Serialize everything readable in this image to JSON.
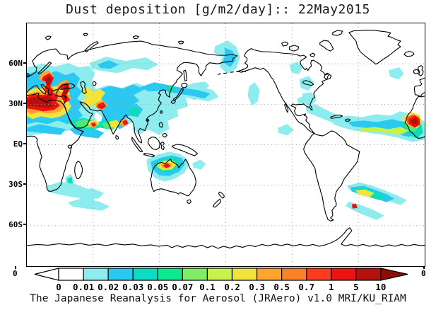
{
  "title": "Dust deposition [g/m2/day]:: 22May2015",
  "caption": "The Japanese Reanalysis for Aerosol (JRAero) v1.0 MRI/KU_RIAM",
  "axes": {
    "lat_labels": [
      {
        "label": "60N",
        "lat": 60
      },
      {
        "label": "30N",
        "lat": 30
      },
      {
        "label": "EQ",
        "lat": 0
      },
      {
        "label": "30S",
        "lat": -30
      },
      {
        "label": "60S",
        "lat": -60
      }
    ],
    "lon_corner_left": "0",
    "lon_corner_right": "0",
    "lon_gridlines": [
      60,
      120,
      180,
      240,
      300
    ],
    "lat_gridlines": [
      60,
      30,
      0,
      -30,
      -60
    ],
    "lon_range": [
      0,
      360
    ],
    "lat_range": [
      -90,
      90
    ]
  },
  "colorbar": {
    "levels": [
      "0",
      "0.01",
      "0.02",
      "0.03",
      "0.05",
      "0.07",
      "0.1",
      "0.2",
      "0.3",
      "0.5",
      "0.7",
      "1",
      "5",
      "10"
    ],
    "segment_colors": [
      "#ffffff",
      "#8deced",
      "#2bc8f2",
      "#0cdcc3",
      "#0ee890",
      "#7fee62",
      "#c8f24b",
      "#f2e43d",
      "#ffa52f",
      "#fb8128",
      "#fb3b1b",
      "#ee1210",
      "#b5100c"
    ],
    "arrow_left_color": "#ffffff",
    "arrow_right_color": "#8d0e09"
  },
  "chart_data": {
    "type": "heatmap",
    "title": "Dust deposition [g/m2/day]:: 22May2015",
    "variable": "Dust deposition",
    "units": "g/m2/day",
    "date": "22May2015",
    "source": "The Japanese Reanalysis for Aerosol (JRAero) v1.0 MRI/KU_RIAM",
    "projection": "equirectangular",
    "lon_range": [
      0,
      360
    ],
    "lat_range": [
      -90,
      90
    ],
    "contour_levels": [
      0,
      0.01,
      0.02,
      0.03,
      0.05,
      0.07,
      0.1,
      0.2,
      0.3,
      0.5,
      0.7,
      1,
      5,
      10
    ],
    "palette": [
      "#8deced",
      "#2bc8f2",
      "#0edcb4",
      "#4fe97a",
      "#c8f24b",
      "#f2e43d",
      "#ffa52f",
      "#fb5a1e",
      "#ee1210",
      "#b5100c"
    ],
    "hotspots": [
      {
        "region": "North Africa / Sahara (0-30E, 18-35N)",
        "approx_value_g_m2_day": ">10"
      },
      {
        "region": "Saharan plume over Italy / Balkans (10-25E, 35-47N)",
        "approx_value_g_m2_day": "1-10"
      },
      {
        "region": "Eastern Mediterranean / Turkey / Middle East",
        "approx_value_g_m2_day": "1-10"
      },
      {
        "region": "NW India / Pakistan (Thar desert)",
        "approx_value_g_m2_day": "1-5"
      },
      {
        "region": "West Africa coast near prime meridian (right map edge)",
        "approx_value_g_m2_day": ">10"
      },
      {
        "region": "Tropical North Atlantic dust plume (5-15N)",
        "approx_value_g_m2_day": "0.01-0.3"
      },
      {
        "region": "Northern Australia",
        "approx_value_g_m2_day": "0.1-1"
      },
      {
        "region": "Patagonia plumes into South Atlantic (38-50S)",
        "approx_value_g_m2_day": "0.02-1"
      },
      {
        "region": "East Asia to North Pacific transport band (30-50N)",
        "approx_value_g_m2_day": "0.01-0.05"
      },
      {
        "region": "Southern Indian Ocean streaks (35-45S)",
        "approx_value_g_m2_day": "0.01-0.03"
      },
      {
        "region": "Central North America scattered patches",
        "approx_value_g_m2_day": "0.01-0.05"
      }
    ],
    "field": [
      {
        "l": 0,
        "p": "0,62 22,57 40,61 58,56 74,62 88,60 96,70 91,84 98,94 93,107 99,119 95,132 101,141 90,150 72,147 56,152 40,149 20,156 0,158"
      },
      {
        "l": 0,
        "p": "88,56 112,47 140,53 168,48 186,58 170,66 150,63 128,70 106,67 92,64"
      },
      {
        "l": 0,
        "p": "94,94 114,87 134,91 154,84 175,91 192,87 206,94 220,90 236,84 252,82 258,88 248,96 252,101 238,108 224,104 228,117 212,122 214,131 199,137 201,149 186,157 171,149 159,157 149,149 153,139 139,143 127,137 116,141 106,132 97,124 103,114 95,104"
      },
      {
        "l": 0,
        "p": "266,32 284,24 296,33 301,48 296,64 283,71 272,61 276,47 264,41"
      },
      {
        "l": 0,
        "p": "224,96 244,89 263,94 271,104 256,110 237,106 225,102"
      },
      {
        "l": 0,
        "p": "314,89 322,83 329,94 326,110 318,116 312,102"
      },
      {
        "l": 0,
        "p": "355,147 368,142 377,150 368,158 355,154"
      },
      {
        "l": 0,
        "p": "371,59 382,54 390,62 384,72 374,69"
      },
      {
        "l": 0,
        "p": "385,79 398,74 406,84 398,95 387,91"
      },
      {
        "l": 0,
        "p": "389,99 402,97 409,108 400,118 391,111"
      },
      {
        "l": 0,
        "p": "394,117 408,114 421,121 436,128 452,133 466,138 480,144 470,150 454,147 438,142 422,136 407,130 395,125"
      },
      {
        "l": 0,
        "p": "430,136 452,130 474,132 494,128 514,130 527,124 542,127 556,134 562,139 562,164 544,167 524,161 504,157 482,154 462,151 446,147 433,142"
      },
      {
        "l": 0,
        "p": "511,66 526,62 533,71 525,79 513,75"
      },
      {
        "l": 0,
        "p": "169,192 184,185 201,181 216,184 226,191 229,200 222,211 209,219 195,223 181,218 171,207"
      },
      {
        "l": 0,
        "p": "234,197 245,192 253,198 246,206 235,203"
      },
      {
        "l": 0,
        "p": "26,230 48,223 70,227 88,234 102,241 93,250 72,246 50,242 32,238"
      },
      {
        "l": 0,
        "p": "58,252 80,246 102,251 117,258 106,264 84,261 64,258"
      },
      {
        "l": 0,
        "p": "74,237 92,232 109,239 101,247 81,244"
      },
      {
        "l": 0,
        "p": "452,229 470,224 488,229 505,235 522,242 537,249 528,256 510,250 492,244 472,239 456,235"
      },
      {
        "l": 0,
        "p": "455,251 472,256 490,263 505,271 494,277 476,270 460,263 450,257"
      },
      {
        "l": 0,
        "p": "54,217 62,212 67,221 62,231 55,227"
      },
      {
        "l": 0,
        "p": "382,106 392,102 398,109 391,115 383,112"
      },
      {
        "l": 1,
        "p": "98,94 118,88 136,92 150,86 166,93 151,101 159,109 146,117 151,127 139,133 143,143 131,149 121,141 113,147 105,137 109,127 99,119 105,109 97,103"
      },
      {
        "l": 1,
        "p": "160,90 180,83 200,87 220,91 242,94 259,99 251,106 233,102 213,99 193,95 172,96"
      },
      {
        "l": 1,
        "p": "279,34 291,39 295,52 287,62 277,54 280,44"
      },
      {
        "l": 1,
        "p": "0,72 14,67 29,72 41,67 55,73 66,69 75,78 70,88 78,96 71,106 79,113 73,122 79,130 69,138 57,142 44,137 29,142 14,139 0,142"
      },
      {
        "l": 1,
        "p": "453,139 475,137 495,139 516,135 533,139 546,145 553,155 540,160 519,155 498,151 477,147 460,145"
      },
      {
        "l": 1,
        "p": "175,195 190,189 205,186 219,190 223,199 215,209 201,215 187,214 177,205"
      },
      {
        "l": 1,
        "p": "457,231 476,229 493,235 509,241 519,247 508,252 491,246 473,241 459,237"
      },
      {
        "l": 1,
        "p": "60,149 79,144 96,149 109,154 101,162 84,160 68,156"
      },
      {
        "l": 1,
        "p": "0,147 18,142 38,146 55,149 48,157 28,155 10,153 0,152"
      },
      {
        "l": 1,
        "p": "140,120 154,113 164,121 157,132 145,130"
      },
      {
        "l": 1,
        "p": "100,58 116,52 130,58 118,64 104,63"
      },
      {
        "l": 2,
        "p": "58,139 80,133 100,139 118,135 133,141 121,150 103,147 87,151 68,147"
      },
      {
        "l": 2,
        "p": "529,139 545,133 557,141 560,154 551,162 539,157 531,149"
      },
      {
        "l": 2,
        "p": "195,91 204,87 210,93 202,99"
      },
      {
        "l": 2,
        "p": "179,197 193,191 208,189 217,194 213,203 200,210 187,208"
      },
      {
        "l": 2,
        "p": "461,233 478,232 495,238 507,243 498,249 481,244 465,239"
      },
      {
        "l": 2,
        "p": "57,219 63,216 65,226 58,225"
      },
      {
        "l": 2,
        "p": "143,122 153,117 160,123 154,131 146,128"
      },
      {
        "l": 3,
        "p": "68,139 82,135 95,140 88,148 72,146"
      },
      {
        "l": 3,
        "p": "106,141 120,137 131,143 121,150 109,147"
      },
      {
        "l": 3,
        "p": "80,98 92,93 100,99 93,106 83,104"
      },
      {
        "l": 3,
        "p": "534,142 546,137 554,144 548,153 538,149"
      },
      {
        "l": 4,
        "p": "468,149 490,146 511,149 528,146 540,151 527,157 506,154 486,152 471,153"
      },
      {
        "l": 4,
        "p": "183,198 195,193 206,193 212,198 205,206 192,207 185,203"
      },
      {
        "l": 4,
        "p": "464,235 478,234 491,239 484,245 469,241"
      },
      {
        "l": 5,
        "p": "0,96 12,91 27,92 41,88 54,92 61,99 57,108 63,116 57,126 48,131 35,134 20,131 8,135 0,131"
      },
      {
        "l": 5,
        "p": "77,95 87,90 95,96 103,92 111,98 105,106 109,114 101,120 93,116 85,119 79,111 83,103"
      },
      {
        "l": 5,
        "p": "86,139 96,136 103,141 95,147 88,145"
      },
      {
        "l": 5,
        "p": "116,139 126,136 133,142 125,148 118,145"
      },
      {
        "l": 5,
        "p": "532,131 544,125 555,129 558,140 551,148 539,144 532,139"
      },
      {
        "l": 5,
        "p": "186,198 196,194 206,194 210,199 203,205 192,205"
      },
      {
        "l": 5,
        "p": "466,236 477,235 488,240 482,244 470,240"
      },
      {
        "l": 6,
        "p": "0,100 13,96 29,97 43,93 53,99 49,108 55,116 47,124 33,127 17,125 6,128 0,125"
      },
      {
        "l": 6,
        "p": "19,71 30,66 38,73 33,86 39,94 31,100 23,93 27,83 17,79"
      },
      {
        "l": 6,
        "p": "45,84 56,79 62,87 57,98 63,106 55,112 47,105 51,95 43,91"
      },
      {
        "l": 6,
        "p": "97,112 107,108 114,115 107,122 98,119"
      },
      {
        "l": 6,
        "p": "189,199 199,196 206,198 201,204 192,204"
      },
      {
        "l": 6,
        "p": "132,137 140,134 144,141 137,146 131,142"
      },
      {
        "l": 6,
        "p": "89,140 96,138 100,143 94,147 89,144"
      },
      {
        "l": 7,
        "p": "535,133 546,128 554,132 556,142 548,147 538,142"
      },
      {
        "l": 8,
        "p": "0,104 11,100 24,101 36,97 45,102 41,110 47,116 38,122 23,124 9,121 0,120"
      },
      {
        "l": 8,
        "p": "23,75 32,70 38,77 33,89 38,96 30,100 25,92 29,83 21,80"
      },
      {
        "l": 8,
        "p": "49,86 58,83 61,92 56,101 61,108 53,112 48,103 52,94 46,90"
      },
      {
        "l": 8,
        "p": "100,114 108,111 112,117 106,121 99,118"
      },
      {
        "l": 8,
        "p": "539,135 548,130 555,135 555,143 548,147 540,142"
      },
      {
        "l": 8,
        "p": "192,200 199,197 203,201 197,204"
      },
      {
        "l": 8,
        "p": "459,255 465,254 467,260 460,261"
      },
      {
        "l": 8,
        "p": "135,138 141,136 143,141 137,144"
      },
      {
        "l": 8,
        "p": "91,141 96,140 98,144 93,146"
      },
      {
        "l": 9,
        "p": "0,108 9,104 19,105 30,102 37,106 34,112 39,117 28,119 13,117 0,116"
      },
      {
        "l": 9,
        "p": "52,87 58,86 59,95 55,101 58,106 52,108 50,98 53,92"
      },
      {
        "l": 9,
        "p": "542,137 549,133 553,138 551,143 544,141"
      },
      {
        "l": 9,
        "p": "26,78 32,74 35,80 31,88 27,85"
      }
    ]
  }
}
